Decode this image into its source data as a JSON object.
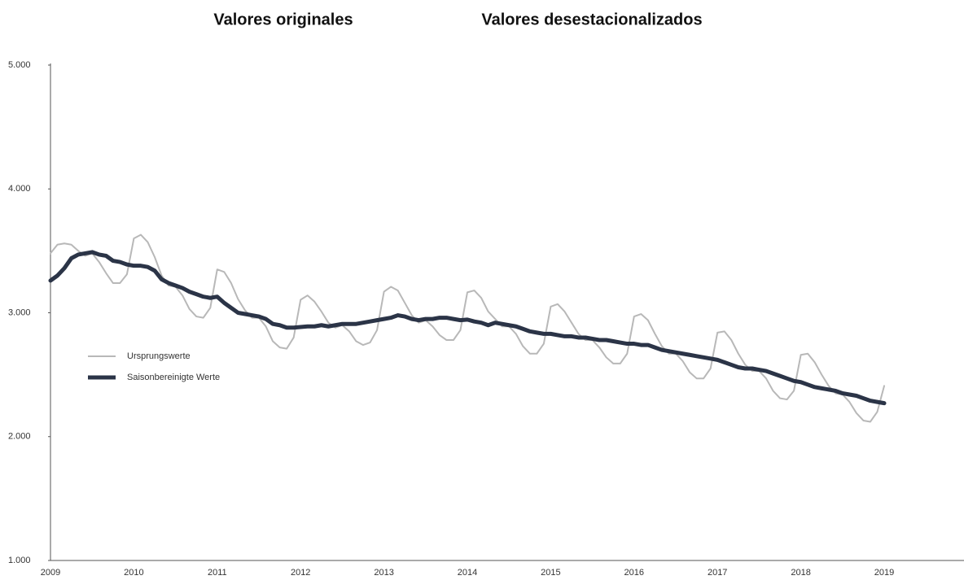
{
  "chart_data": {
    "type": "line",
    "headers": [
      "Valores originales",
      "Valores desestacionalizados"
    ],
    "categories": [
      "2009",
      null,
      null,
      null,
      null,
      null,
      null,
      null,
      null,
      null,
      null,
      null,
      "2010",
      null,
      null,
      null,
      null,
      null,
      null,
      null,
      null,
      null,
      null,
      null,
      "2011",
      null,
      null,
      null,
      null,
      null,
      null,
      null,
      null,
      null,
      null,
      null,
      "2012",
      null,
      null,
      null,
      null,
      null,
      null,
      null,
      null,
      null,
      null,
      null,
      "2013",
      null,
      null,
      null,
      null,
      null,
      null,
      null,
      null,
      null,
      null,
      null,
      "2014",
      null,
      null,
      null,
      null,
      null,
      null,
      null,
      null,
      null,
      null,
      null,
      "2015",
      null,
      null,
      null,
      null,
      null,
      null,
      null,
      null,
      null,
      null,
      null,
      "2016",
      null,
      null,
      null,
      null,
      null,
      null,
      null,
      null,
      null,
      null,
      null,
      "2017",
      null,
      null,
      null,
      null,
      null,
      null,
      null,
      null,
      null,
      null,
      null,
      "2018",
      null,
      null,
      null,
      null,
      null,
      null,
      null,
      null,
      null,
      null,
      null,
      "2019"
    ],
    "series": [
      {
        "name": "Ursprungswerte",
        "color": "#b8b8b8",
        "width": 2,
        "values": [
          3480,
          3550,
          3560,
          3550,
          3500,
          3460,
          3480,
          3410,
          3320,
          3240,
          3240,
          3310,
          3600,
          3630,
          3570,
          3450,
          3300,
          3220,
          3210,
          3140,
          3030,
          2970,
          2960,
          3040,
          3350,
          3330,
          3240,
          3110,
          3020,
          2960,
          2960,
          2890,
          2770,
          2720,
          2710,
          2800,
          3105,
          3140,
          3090,
          3010,
          2920,
          2880,
          2900,
          2850,
          2770,
          2740,
          2760,
          2860,
          3170,
          3210,
          3180,
          3080,
          2980,
          2920,
          2940,
          2890,
          2820,
          2780,
          2780,
          2860,
          3165,
          3180,
          3120,
          3010,
          2950,
          2890,
          2890,
          2830,
          2730,
          2670,
          2670,
          2750,
          3050,
          3070,
          3010,
          2920,
          2830,
          2780,
          2780,
          2720,
          2640,
          2590,
          2590,
          2670,
          2970,
          2990,
          2940,
          2830,
          2730,
          2670,
          2670,
          2610,
          2520,
          2470,
          2470,
          2550,
          2840,
          2850,
          2780,
          2670,
          2580,
          2530,
          2530,
          2470,
          2370,
          2310,
          2300,
          2370,
          2660,
          2670,
          2600,
          2500,
          2410,
          2350,
          2340,
          2280,
          2190,
          2130,
          2120,
          2200,
          2410
        ]
      },
      {
        "name": "Saisonbereinigte Werte",
        "color": "#2b3447",
        "width": 5,
        "values": [
          3260,
          3300,
          3360,
          3440,
          3470,
          3480,
          3490,
          3470,
          3460,
          3420,
          3410,
          3390,
          3380,
          3380,
          3370,
          3340,
          3270,
          3240,
          3220,
          3200,
          3170,
          3150,
          3130,
          3120,
          3130,
          3080,
          3040,
          3000,
          2990,
          2980,
          2970,
          2950,
          2910,
          2900,
          2880,
          2880,
          2885,
          2890,
          2890,
          2900,
          2890,
          2900,
          2910,
          2910,
          2910,
          2920,
          2930,
          2940,
          2950,
          2960,
          2980,
          2970,
          2950,
          2940,
          2950,
          2950,
          2960,
          2960,
          2950,
          2940,
          2945,
          2930,
          2920,
          2900,
          2920,
          2910,
          2900,
          2890,
          2870,
          2850,
          2840,
          2830,
          2830,
          2820,
          2810,
          2810,
          2800,
          2800,
          2790,
          2780,
          2780,
          2770,
          2760,
          2750,
          2750,
          2740,
          2740,
          2720,
          2700,
          2690,
          2680,
          2670,
          2660,
          2650,
          2640,
          2630,
          2620,
          2600,
          2580,
          2560,
          2550,
          2550,
          2540,
          2530,
          2510,
          2490,
          2470,
          2450,
          2440,
          2420,
          2400,
          2390,
          2380,
          2370,
          2350,
          2340,
          2330,
          2310,
          2290,
          2280,
          2270
        ]
      }
    ],
    "ylim": [
      1000,
      5000
    ],
    "yticks": [
      {
        "value": 1000,
        "label": "1.000"
      },
      {
        "value": 2000,
        "label": "2.000"
      },
      {
        "value": 3000,
        "label": "3.000"
      },
      {
        "value": 4000,
        "label": "4.000"
      },
      {
        "value": 5000,
        "label": "5.000"
      }
    ],
    "grid": false,
    "legend": "left"
  }
}
